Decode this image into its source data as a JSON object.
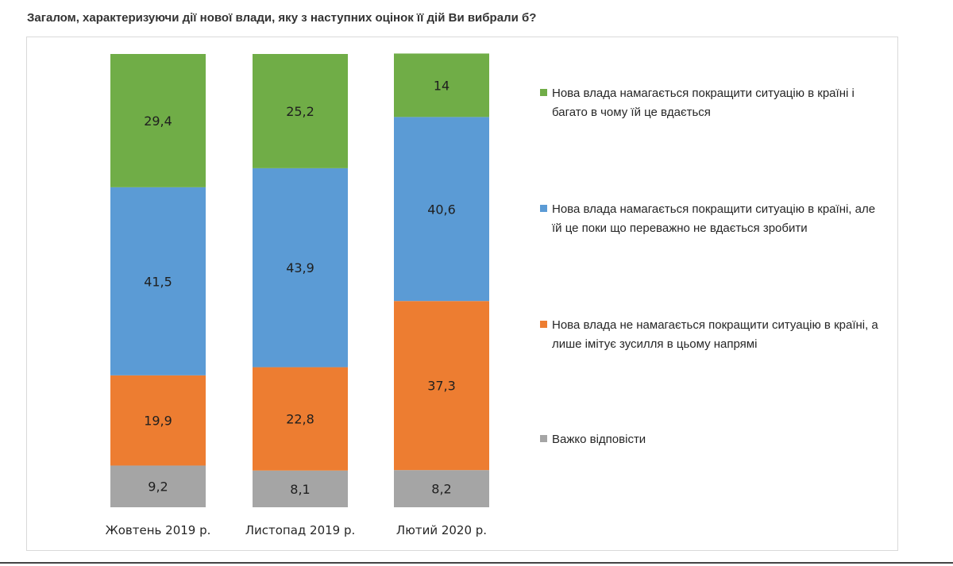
{
  "question": "Загалом, характеризуючи дії нової влади, яку з наступних оцінок її дій Ви вибрали б?",
  "chart_data": {
    "type": "bar",
    "stacked": true,
    "categories": [
      "Жовтень 2019 р.",
      "Листопад 2019 р.",
      "Лютий 2020 р."
    ],
    "series": [
      {
        "name": "Важко відповісти",
        "color": "#a5a5a5",
        "values": [
          9.2,
          8.1,
          8.2
        ],
        "labels": [
          "9,2",
          "8,1",
          "8,2"
        ]
      },
      {
        "name": "Нова влада не намагається покращити ситуацію в країні, а лише імітує зусилля в цьому напрямі",
        "color": "#ed7d31",
        "values": [
          19.9,
          22.8,
          37.3
        ],
        "labels": [
          "19,9",
          "22,8",
          "37,3"
        ]
      },
      {
        "name": "Нова влада намагається покращити ситуацію в країні, але їй це поки що переважно не вдається зробити",
        "color": "#5b9bd5",
        "values": [
          41.5,
          43.9,
          40.6
        ],
        "labels": [
          "41,5",
          "43,9",
          "40,6"
        ]
      },
      {
        "name": "Нова влада намагається покращити ситуацію в країні і багато в чому їй це вдається",
        "color": "#70ad47",
        "values": [
          29.4,
          25.2,
          14
        ],
        "labels": [
          "29,4",
          "25,2",
          "14"
        ]
      }
    ],
    "ylim": [
      0,
      100
    ],
    "grid": false,
    "legend": "right",
    "legend_order": [
      3,
      2,
      1,
      0
    ]
  }
}
